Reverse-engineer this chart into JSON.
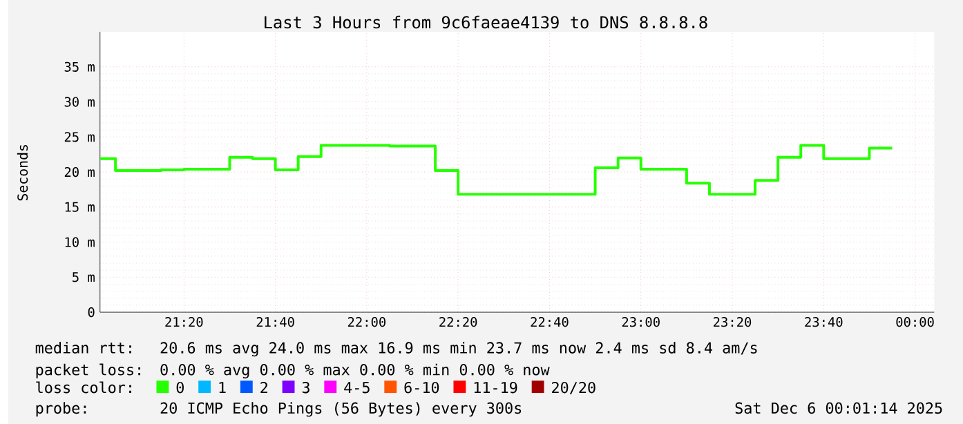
{
  "chart_data": {
    "type": "step",
    "title": "Last 3 Hours from 9c6faeae4139 to DNS 8.8.8.8",
    "ylabel": "Seconds",
    "x": [
      21.027,
      21.0833,
      21.1667,
      21.25,
      21.3333,
      21.4167,
      21.5,
      21.5833,
      21.6667,
      21.75,
      21.8333,
      21.9167,
      22.0,
      22.0833,
      22.1667,
      22.25,
      22.3333,
      22.4167,
      22.5,
      22.5833,
      22.6667,
      22.75,
      22.8333,
      22.9167,
      23.0,
      23.0833,
      23.1667,
      23.25,
      23.3333,
      23.4167,
      23.5,
      23.5833,
      23.6667,
      23.75,
      23.8333,
      23.9167
    ],
    "series": [
      {
        "name": "0",
        "color": "#26ff00",
        "values": [
          21.9,
          21.9,
          20.2,
          20.2,
          20.3,
          20.4,
          20.4,
          22.1,
          21.9,
          20.3,
          22.2,
          23.8,
          23.8,
          23.8,
          23.7,
          23.7,
          20.2,
          16.8,
          16.8,
          16.8,
          16.8,
          16.8,
          16.8,
          20.6,
          22.0,
          20.4,
          20.4,
          18.4,
          16.8,
          16.8,
          18.8,
          22.1,
          23.8,
          21.9,
          21.9,
          23.4
        ]
      },
      {
        "name": "1",
        "color": "#00b8ff",
        "values": [
          null,
          null,
          null,
          null,
          null,
          null,
          null,
          null,
          null,
          null,
          null,
          null,
          null,
          null,
          null,
          null,
          null,
          null,
          null,
          null,
          null,
          null,
          null,
          null,
          null,
          null,
          null,
          null,
          null,
          null,
          null,
          null,
          null,
          null,
          null,
          null
        ]
      },
      {
        "name": "2",
        "color": "#0059ff",
        "values": [
          null,
          null,
          null,
          null,
          null,
          null,
          null,
          null,
          null,
          null,
          null,
          null,
          null,
          null,
          null,
          null,
          null,
          null,
          null,
          null,
          null,
          null,
          null,
          null,
          null,
          null,
          null,
          null,
          null,
          null,
          null,
          null,
          null,
          null,
          null,
          null
        ]
      },
      {
        "name": "3",
        "color": "#7e00ff",
        "values": [
          null,
          null,
          null,
          null,
          null,
          null,
          null,
          null,
          null,
          null,
          null,
          null,
          null,
          null,
          null,
          null,
          null,
          null,
          null,
          null,
          null,
          null,
          null,
          null,
          null,
          null,
          null,
          null,
          null,
          null,
          null,
          null,
          null,
          null,
          null,
          null
        ]
      },
      {
        "name": "4-5",
        "color": "#ff00ff",
        "values": [
          null,
          null,
          null,
          null,
          null,
          null,
          null,
          null,
          null,
          null,
          null,
          null,
          null,
          null,
          null,
          null,
          null,
          null,
          null,
          null,
          null,
          null,
          null,
          null,
          null,
          null,
          null,
          null,
          null,
          null,
          null,
          null,
          null,
          null,
          null,
          null
        ]
      },
      {
        "name": "6-10",
        "color": "#ff5500",
        "values": [
          null,
          null,
          null,
          null,
          null,
          null,
          null,
          null,
          null,
          null,
          null,
          null,
          null,
          null,
          null,
          null,
          null,
          null,
          null,
          null,
          null,
          null,
          null,
          null,
          null,
          null,
          null,
          null,
          null,
          null,
          null,
          null,
          null,
          null,
          null,
          null
        ]
      },
      {
        "name": "11-19",
        "color": "#ff0000",
        "values": [
          null,
          null,
          null,
          null,
          null,
          null,
          null,
          null,
          null,
          null,
          null,
          null,
          null,
          null,
          null,
          null,
          null,
          null,
          null,
          null,
          null,
          null,
          null,
          null,
          null,
          null,
          null,
          null,
          null,
          null,
          null,
          null,
          null,
          null,
          null,
          null
        ]
      },
      {
        "name": "20/20",
        "color": "#a10000",
        "values": [
          null,
          null,
          null,
          null,
          null,
          null,
          null,
          null,
          null,
          null,
          null,
          null,
          null,
          null,
          null,
          null,
          null,
          null,
          null,
          null,
          null,
          null,
          null,
          null,
          null,
          null,
          null,
          null,
          null,
          null,
          null,
          null,
          null,
          null,
          null,
          null
        ]
      }
    ],
    "legend_title": "loss color:",
    "legend": "bottom",
    "grid": true,
    "xlim": [
      21.027,
      24.07
    ],
    "xticks": [
      {
        "value": 21.3333,
        "label": "21:20"
      },
      {
        "value": 21.6667,
        "label": "21:40"
      },
      {
        "value": 22,
        "label": "22:00"
      },
      {
        "value": 22.3333,
        "label": "22:20"
      },
      {
        "value": 22.6667,
        "label": "22:40"
      },
      {
        "value": 23,
        "label": "23:00"
      },
      {
        "value": 23.3333,
        "label": "23:20"
      },
      {
        "value": 23.6667,
        "label": "23:40"
      },
      {
        "value": 24,
        "label": "00:00"
      }
    ],
    "ylim": [
      0,
      40
    ],
    "yticks": [
      0,
      {
        "value": 5,
        "label": "5 m"
      },
      {
        "value": 10,
        "label": "10 m"
      },
      {
        "value": 15,
        "label": "15 m"
      },
      {
        "value": 20,
        "label": "20 m"
      },
      {
        "value": 25,
        "label": "25 m"
      },
      {
        "value": 30,
        "label": "30 m"
      },
      {
        "value": 35,
        "label": "35 m"
      }
    ],
    "annotations": [
      "median rtt:",
      "20.6 ms avg  24.0 ms max  16.9 ms min  23.7 ms now  2.4 ms sd  8.4  am/s",
      "packet loss:",
      "0.00 % avg  0.00 % max  0.00 % min  0.00 % now",
      "probe:",
      "20 ICMP Echo Pings (56 Bytes) every 300s",
      "Sat Dec  6 00:01:14 2025"
    ]
  }
}
